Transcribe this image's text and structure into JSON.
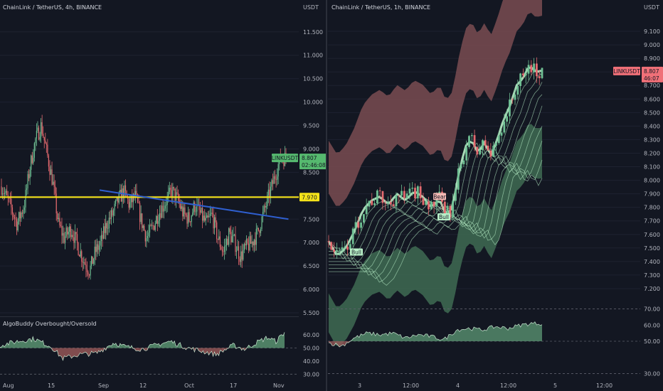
{
  "colors": {
    "bg": "#131722",
    "up": "#6fbf93",
    "down": "#e46a6f",
    "grid": "#1e2230",
    "text": "#b2b5be",
    "yellow": "#f5e31a",
    "blue": "#2f5fd0",
    "osc_up": "#5e9a76",
    "osc_down": "#9c5a5a",
    "cloud_top": "#7a4c51",
    "cloud_bottom": "#3f6b52",
    "band": "#b9f0c8",
    "price_red": "#f07078",
    "price_green": "#56b96f"
  },
  "chart_data": [
    {
      "type": "candlestick",
      "title": "ChainLink / TetherUS, 4h, BINANCE",
      "y_unit": "USDT",
      "ylim": [
        5.5,
        11.8
      ],
      "y_ticks": [
        "11.500",
        "11.000",
        "10.500",
        "10.000",
        "9.500",
        "9.000",
        "8.500",
        "8.000",
        "7.500",
        "7.000",
        "6.500",
        "6.000",
        "5.500"
      ],
      "x_ticks": [
        "Aug",
        "15",
        "Sep",
        "12",
        "Oct",
        "17",
        "Nov"
      ],
      "price_tag": {
        "symbol": "LINKUSDT",
        "price": "8.807",
        "countdown": "02:46:08",
        "value": 8.807
      },
      "horizontal_line": {
        "label": "7.970",
        "value": 7.97
      },
      "trend_line": {
        "from": [
          0.335,
          8.12
        ],
        "to": [
          0.97,
          7.5
        ]
      },
      "close_path": [
        [
          0,
          8.2
        ],
        [
          0.03,
          7.8
        ],
        [
          0.055,
          7.4
        ],
        [
          0.08,
          7.8
        ],
        [
          0.1,
          8.6
        ],
        [
          0.12,
          9.2
        ],
        [
          0.14,
          9.5
        ],
        [
          0.16,
          8.9
        ],
        [
          0.18,
          8.3
        ],
        [
          0.2,
          7.4
        ],
        [
          0.22,
          7.1
        ],
        [
          0.245,
          7.3
        ],
        [
          0.27,
          6.9
        ],
        [
          0.29,
          6.6
        ],
        [
          0.31,
          6.4
        ],
        [
          0.33,
          6.8
        ],
        [
          0.35,
          7.0
        ],
        [
          0.37,
          7.4
        ],
        [
          0.39,
          7.6
        ],
        [
          0.41,
          7.9
        ],
        [
          0.43,
          8.1
        ],
        [
          0.45,
          7.8
        ],
        [
          0.47,
          8.0
        ],
        [
          0.49,
          7.5
        ],
        [
          0.51,
          7.1
        ],
        [
          0.53,
          7.3
        ],
        [
          0.55,
          7.6
        ],
        [
          0.57,
          7.8
        ],
        [
          0.6,
          8.1
        ],
        [
          0.62,
          7.9
        ],
        [
          0.64,
          7.6
        ],
        [
          0.66,
          7.5
        ],
        [
          0.68,
          7.8
        ],
        [
          0.7,
          7.6
        ],
        [
          0.72,
          7.4
        ],
        [
          0.74,
          7.6
        ],
        [
          0.76,
          7.1
        ],
        [
          0.78,
          6.8
        ],
        [
          0.8,
          7.2
        ],
        [
          0.82,
          7.0
        ],
        [
          0.84,
          6.7
        ],
        [
          0.86,
          6.9
        ],
        [
          0.88,
          7.0
        ],
        [
          0.9,
          7.2
        ],
        [
          0.92,
          7.6
        ],
        [
          0.94,
          8.0
        ],
        [
          0.96,
          8.4
        ],
        [
          0.98,
          8.8
        ],
        [
          1.0,
          8.81
        ]
      ]
    },
    {
      "type": "line",
      "title": "AlgoBuddy Overbought/Oversold",
      "ylim": [
        28,
        66
      ],
      "y_ticks": [
        "60.00",
        "50.00",
        "40.00",
        "30.00"
      ],
      "reference_lines": [
        30,
        50,
        70
      ],
      "x": [
        0,
        0.06,
        0.12,
        0.18,
        0.22,
        0.28,
        0.34,
        0.4,
        0.44,
        0.5,
        0.56,
        0.6,
        0.66,
        0.72,
        0.76,
        0.82,
        0.86,
        0.9,
        0.94,
        0.97,
        1.0
      ],
      "values": [
        52,
        55,
        57,
        51,
        42,
        45,
        46,
        54,
        51,
        49,
        53,
        55,
        50,
        47,
        45,
        52,
        49,
        54,
        58,
        55,
        62
      ]
    },
    {
      "type": "candlestick",
      "title": "ChainLink / TetherUS, 1h, BINANCE",
      "y_unit": "USDT",
      "ylim": [
        7.1,
        9.2
      ],
      "y_ticks": [
        "9.100",
        "9.000",
        "8.900",
        "8.800",
        "8.700",
        "8.600",
        "8.500",
        "8.400",
        "8.300",
        "8.200",
        "8.100",
        "8.000",
        "7.900",
        "7.800",
        "7.700",
        "7.600",
        "7.500",
        "7.400",
        "7.300",
        "7.200"
      ],
      "x_ticks": [
        "3",
        "12:00",
        "4",
        "12:00",
        "5",
        "12:00"
      ],
      "price_tag": {
        "symbol": "LINKUSDT",
        "price": "8.807",
        "countdown": "46:07",
        "value": 8.807
      },
      "signals": [
        {
          "label": "Bull",
          "x": 0.13,
          "y": 7.47
        },
        {
          "label": "Bear",
          "x": 0.52,
          "y": 7.88
        },
        {
          "label": "Bull",
          "x": 0.54,
          "y": 7.73
        }
      ],
      "close_path": [
        [
          0,
          7.55
        ],
        [
          0.04,
          7.44
        ],
        [
          0.08,
          7.5
        ],
        [
          0.12,
          7.62
        ],
        [
          0.16,
          7.78
        ],
        [
          0.2,
          7.85
        ],
        [
          0.24,
          7.88
        ],
        [
          0.28,
          7.82
        ],
        [
          0.32,
          7.9
        ],
        [
          0.36,
          7.85
        ],
        [
          0.4,
          7.92
        ],
        [
          0.44,
          7.88
        ],
        [
          0.48,
          7.8
        ],
        [
          0.52,
          7.86
        ],
        [
          0.55,
          7.74
        ],
        [
          0.58,
          7.8
        ],
        [
          0.61,
          8.05
        ],
        [
          0.64,
          8.25
        ],
        [
          0.67,
          8.3
        ],
        [
          0.7,
          8.2
        ],
        [
          0.73,
          8.28
        ],
        [
          0.76,
          8.18
        ],
        [
          0.79,
          8.3
        ],
        [
          0.82,
          8.45
        ],
        [
          0.85,
          8.55
        ],
        [
          0.88,
          8.7
        ],
        [
          0.91,
          8.75
        ],
        [
          0.94,
          8.85
        ],
        [
          0.97,
          8.8
        ],
        [
          1.0,
          8.81
        ]
      ]
    },
    {
      "type": "line",
      "title": "",
      "ylim": [
        28,
        72
      ],
      "y_ticks": [
        "70.00",
        "60.00",
        "50.00",
        "30.00"
      ],
      "reference_lines": [
        30,
        50,
        70
      ],
      "x": [
        0,
        0.06,
        0.12,
        0.18,
        0.24,
        0.3,
        0.36,
        0.42,
        0.48,
        0.54,
        0.6,
        0.66,
        0.72,
        0.78,
        0.84,
        0.9,
        0.95,
        1.0
      ],
      "values": [
        49,
        47,
        52,
        55,
        54,
        55,
        52,
        54,
        53,
        51,
        57,
        58,
        57,
        59,
        58,
        60,
        61,
        61
      ]
    }
  ]
}
